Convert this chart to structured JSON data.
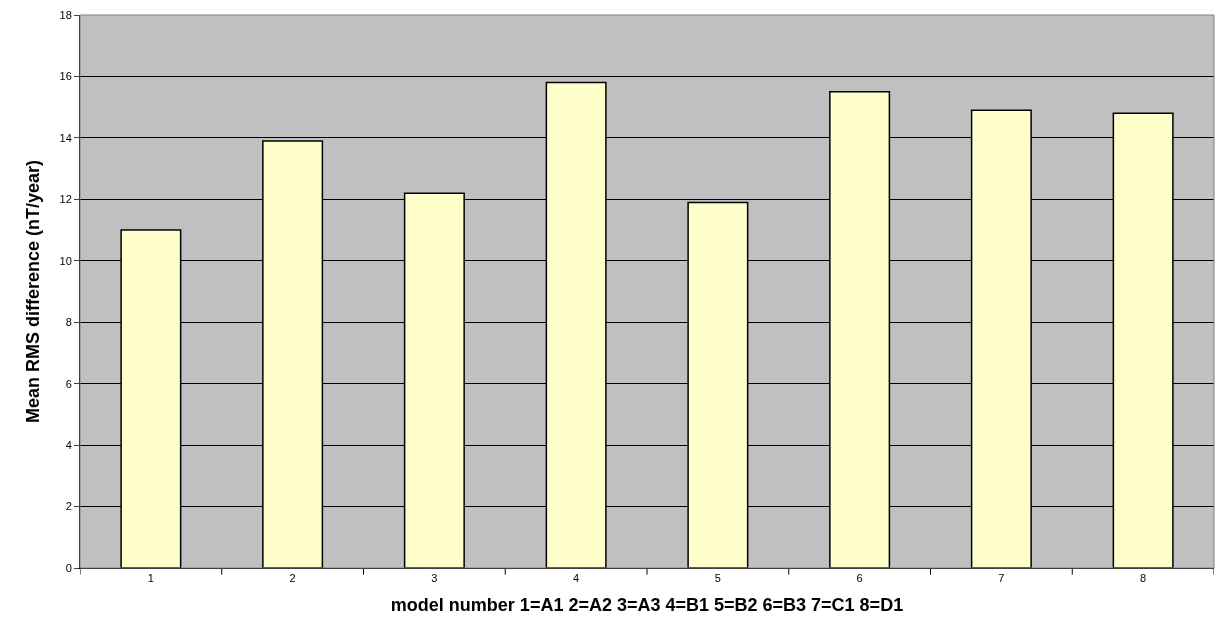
{
  "chart_data": {
    "type": "bar",
    "xlabel": "model number 1=A1 2=A2 3=A3 4=B1 5=B2 6=B3 7=C1 8=D1",
    "ylabel": "Mean RMS difference (nT/year)",
    "categories": [
      "1",
      "2",
      "3",
      "4",
      "5",
      "6",
      "7",
      "8"
    ],
    "values": [
      11.0,
      13.9,
      12.2,
      15.8,
      11.9,
      15.5,
      14.9,
      14.8
    ],
    "color": "#ffffcc",
    "ylim": [
      0,
      18
    ],
    "yticks": [
      0,
      2,
      4,
      6,
      8,
      10,
      12,
      14,
      16,
      18
    ],
    "grid": "y"
  }
}
